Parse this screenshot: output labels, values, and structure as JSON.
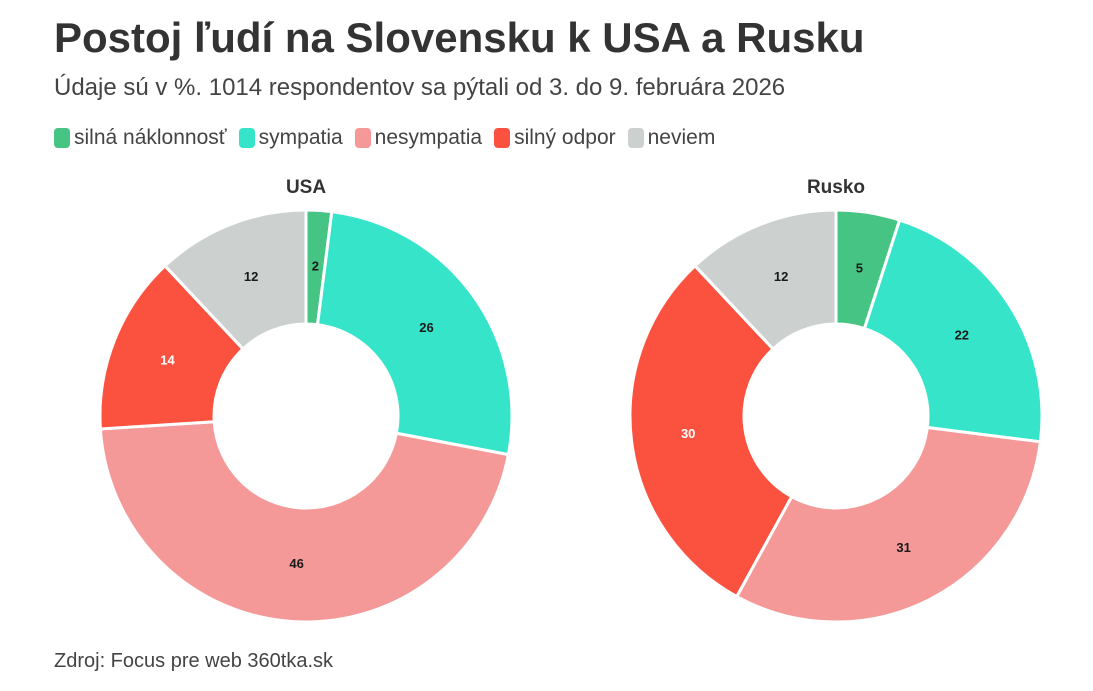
{
  "title": "Postoj ľudí na Slovensku k USA a Rusku",
  "subtitle": "Údaje sú v %. 1014 respondentov sa pýtali od 3. do 9. februára 2026",
  "source": "Zdroj: Focus pre web 360tka.sk",
  "legend": [
    {
      "label": "silná náklonnosť",
      "color": "#45C483"
    },
    {
      "label": "sympatia",
      "color": "#36E5C9"
    },
    {
      "label": "nesympatia",
      "color": "#F49898"
    },
    {
      "label": "silný odpor",
      "color": "#FB5240"
    },
    {
      "label": "neviem",
      "color": "#CCD1D0"
    }
  ],
  "chart_data": [
    {
      "type": "pie",
      "variant": "donut",
      "title": "USA",
      "categories": [
        "silná náklonnosť",
        "sympatia",
        "nesympatia",
        "silný odpor",
        "neviem"
      ],
      "values": [
        2,
        26,
        46,
        14,
        12
      ],
      "colors": [
        "#45C483",
        "#36E5C9",
        "#F49898",
        "#FB5240",
        "#CCD1D0"
      ],
      "label_colors": [
        "#1a1a1a",
        "#1a1a1a",
        "#1a1a1a",
        "#ffffff",
        "#1a1a1a"
      ]
    },
    {
      "type": "pie",
      "variant": "donut",
      "title": "Rusko",
      "categories": [
        "silná náklonnosť",
        "sympatia",
        "nesympatia",
        "silný odpor",
        "neviem"
      ],
      "values": [
        5,
        22,
        31,
        30,
        12
      ],
      "colors": [
        "#45C483",
        "#36E5C9",
        "#F49898",
        "#FB5240",
        "#CCD1D0"
      ],
      "label_colors": [
        "#1a1a1a",
        "#1a1a1a",
        "#1a1a1a",
        "#ffffff",
        "#1a1a1a"
      ]
    }
  ]
}
